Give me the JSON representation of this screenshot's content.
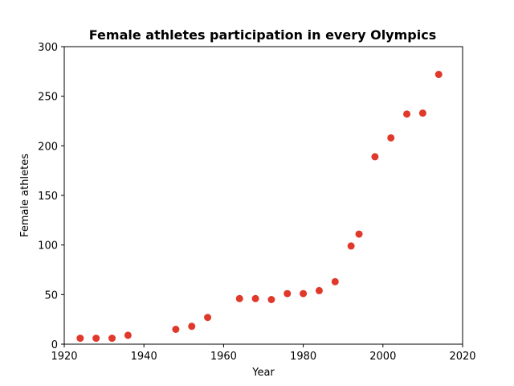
{
  "chart_data": {
    "type": "scatter",
    "title": "Female athletes participation in every Olympics",
    "xlabel": "Year",
    "ylabel": "Female athletes",
    "xlim": [
      1920,
      2020
    ],
    "ylim": [
      0,
      300
    ],
    "xticks": [
      1920,
      1940,
      1960,
      1980,
      2000,
      2020
    ],
    "yticks": [
      0,
      50,
      100,
      150,
      200,
      250,
      300
    ],
    "grid": false,
    "marker_color": "#e0392b",
    "points": [
      {
        "x": 1924,
        "y": 6
      },
      {
        "x": 1928,
        "y": 6
      },
      {
        "x": 1932,
        "y": 6
      },
      {
        "x": 1936,
        "y": 9
      },
      {
        "x": 1948,
        "y": 15
      },
      {
        "x": 1952,
        "y": 18
      },
      {
        "x": 1956,
        "y": 27
      },
      {
        "x": 1964,
        "y": 46
      },
      {
        "x": 1968,
        "y": 46
      },
      {
        "x": 1972,
        "y": 45
      },
      {
        "x": 1976,
        "y": 51
      },
      {
        "x": 1980,
        "y": 51
      },
      {
        "x": 1984,
        "y": 54
      },
      {
        "x": 1988,
        "y": 63
      },
      {
        "x": 1992,
        "y": 99
      },
      {
        "x": 1994,
        "y": 111
      },
      {
        "x": 1998,
        "y": 189
      },
      {
        "x": 2002,
        "y": 208
      },
      {
        "x": 2006,
        "y": 232
      },
      {
        "x": 2010,
        "y": 233
      },
      {
        "x": 2014,
        "y": 272
      }
    ]
  }
}
